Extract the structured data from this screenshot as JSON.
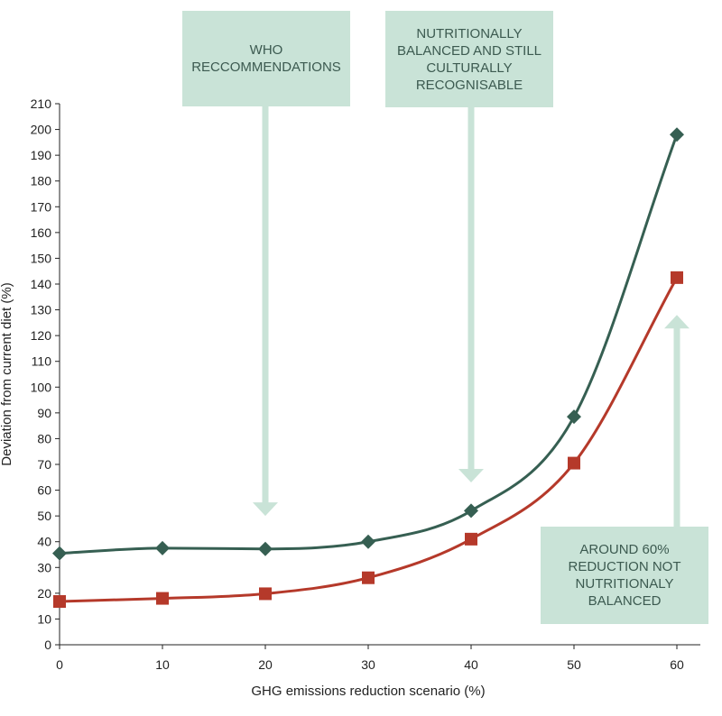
{
  "chart_data": {
    "type": "line",
    "xlabel": "GHG emissions reduction scenario (%)",
    "ylabel": "Deviation from current diet (%)",
    "xlim": [
      0,
      60
    ],
    "ylim": [
      0,
      210
    ],
    "x_ticks": [
      0,
      10,
      20,
      30,
      40,
      50,
      60
    ],
    "y_ticks": [
      0,
      10,
      20,
      30,
      40,
      50,
      60,
      70,
      80,
      90,
      100,
      110,
      120,
      130,
      140,
      150,
      160,
      170,
      180,
      190,
      200,
      210
    ],
    "grid": false,
    "legend": "none",
    "x": [
      0,
      10,
      20,
      30,
      40,
      50,
      60
    ],
    "series": [
      {
        "values": [
          35.5,
          37.5,
          37.2,
          40,
          52,
          88.5,
          198
        ],
        "color": "#365f52",
        "marker": "diamond"
      },
      {
        "values": [
          16.8,
          18,
          19.8,
          26,
          41,
          70.5,
          142.5
        ],
        "color": "#b5392a",
        "marker": "square"
      }
    ],
    "annotations": [
      {
        "text": "WHO\nRECCOMMENDATIONS",
        "arrow": "down",
        "arrow_x": 20,
        "arrow_tip_y": 50
      },
      {
        "text": "NUTRITIONALLY\nBALANCED AND STILL\nCULTURALLY\nRECOGNISABLE",
        "arrow": "down",
        "arrow_x": 40,
        "arrow_tip_y": 63
      },
      {
        "text": "AROUND 60%\nREDUCTION NOT\nNUTRITIONALY\nBALANCED",
        "arrow": "up",
        "arrow_x": 60,
        "arrow_tip_y": 128
      }
    ],
    "annotation_color": "#c9e3d7",
    "annotation_text_color": "#3c5a50"
  }
}
